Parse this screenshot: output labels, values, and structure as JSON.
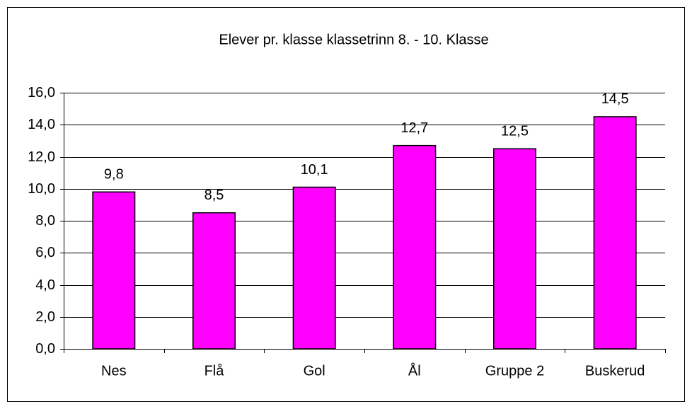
{
  "chart_data": {
    "type": "bar",
    "title": "Elever pr. klasse klassetrinn 8. - 10. Klasse",
    "categories": [
      "Nes",
      "Flå",
      "Gol",
      "Ål",
      "Gruppe 2",
      "Buskerud"
    ],
    "values": [
      9.8,
      8.5,
      10.1,
      12.7,
      12.5,
      14.5
    ],
    "value_labels": [
      "9,8",
      "8,5",
      "10,1",
      "12,7",
      "12,5",
      "14,5"
    ],
    "color": "#ff00ff",
    "ylim": [
      0,
      16
    ],
    "yticks": [
      {
        "value": 0,
        "label": "0,0"
      },
      {
        "value": 2,
        "label": "2,0"
      },
      {
        "value": 4,
        "label": "4,0"
      },
      {
        "value": 6,
        "label": "6,0"
      },
      {
        "value": 8,
        "label": "8,0"
      },
      {
        "value": 10,
        "label": "10,0"
      },
      {
        "value": 12,
        "label": "12,0"
      },
      {
        "value": 14,
        "label": "14,0"
      },
      {
        "value": 16,
        "label": "16,0"
      }
    ],
    "grid": true
  }
}
